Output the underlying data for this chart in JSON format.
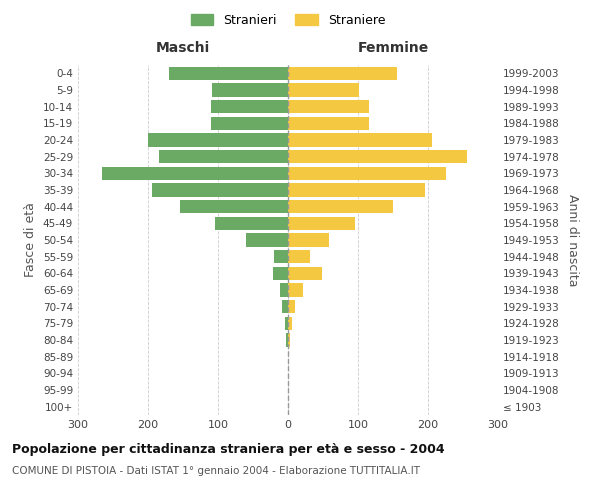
{
  "age_groups": [
    "100+",
    "95-99",
    "90-94",
    "85-89",
    "80-84",
    "75-79",
    "70-74",
    "65-69",
    "60-64",
    "55-59",
    "50-54",
    "45-49",
    "40-44",
    "35-39",
    "30-34",
    "25-29",
    "20-24",
    "15-19",
    "10-14",
    "5-9",
    "0-4"
  ],
  "birth_years": [
    "≤ 1903",
    "1904-1908",
    "1909-1913",
    "1914-1918",
    "1919-1923",
    "1924-1928",
    "1929-1933",
    "1934-1938",
    "1939-1943",
    "1944-1948",
    "1949-1953",
    "1954-1958",
    "1959-1963",
    "1964-1968",
    "1969-1973",
    "1974-1978",
    "1979-1983",
    "1984-1988",
    "1989-1993",
    "1994-1998",
    "1999-2003"
  ],
  "maschi": [
    0,
    0,
    0,
    0,
    3,
    5,
    8,
    12,
    22,
    20,
    60,
    105,
    155,
    195,
    265,
    185,
    200,
    110,
    110,
    108,
    170
  ],
  "femmine": [
    0,
    0,
    0,
    0,
    3,
    5,
    10,
    22,
    48,
    32,
    58,
    95,
    150,
    195,
    225,
    255,
    205,
    115,
    115,
    102,
    155
  ],
  "maschi_color": "#6aaa64",
  "femmine_color": "#f5c842",
  "title": "Popolazione per cittadinanza straniera per età e sesso - 2004",
  "subtitle": "COMUNE DI PISTOIA - Dati ISTAT 1° gennaio 2004 - Elaborazione TUTTITALIA.IT",
  "label_maschi": "Maschi",
  "label_femmine": "Femmine",
  "ylabel_left": "Fasce di età",
  "ylabel_right": "Anni di nascita",
  "xlim": 300,
  "xtick_vals": [
    300,
    200,
    100,
    0,
    100,
    200,
    300
  ],
  "legend_stranieri": "Stranieri",
  "legend_straniere": "Straniere",
  "background_color": "#ffffff",
  "grid_color": "#cccccc"
}
